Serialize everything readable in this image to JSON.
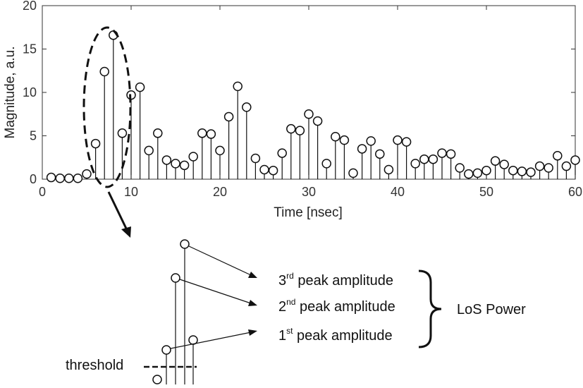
{
  "chart_data": {
    "type": "stem",
    "xlabel": "Time [nsec]",
    "ylabel": "Magnitude, a.u.",
    "xlim": [
      0,
      60
    ],
    "ylim": [
      0,
      20
    ],
    "xticks": [
      0,
      10,
      20,
      30,
      40,
      50,
      60
    ],
    "yticks": [
      0,
      5,
      10,
      15,
      20
    ],
    "grid": false,
    "x": [
      1,
      2,
      3,
      4,
      5,
      6,
      7,
      8,
      9,
      10,
      11,
      12,
      13,
      14,
      15,
      16,
      17,
      18,
      19,
      20,
      21,
      22,
      23,
      24,
      25,
      26,
      27,
      28,
      29,
      30,
      31,
      32,
      33,
      34,
      35,
      36,
      37,
      38,
      39,
      40,
      41,
      42,
      43,
      44,
      45,
      46,
      47,
      48,
      49,
      50,
      51,
      52,
      53,
      54,
      55,
      56,
      57,
      58,
      59,
      60
    ],
    "y": [
      0.2,
      0.1,
      0.1,
      0.1,
      0.6,
      4.1,
      12.4,
      16.6,
      5.3,
      9.7,
      10.6,
      3.3,
      5.3,
      2.2,
      1.8,
      1.6,
      2.6,
      5.3,
      5.2,
      3.3,
      7.2,
      10.7,
      8.3,
      2.4,
      1.1,
      1.0,
      3.0,
      5.8,
      5.6,
      7.5,
      6.7,
      1.8,
      4.9,
      4.5,
      0.7,
      3.5,
      4.4,
      2.9,
      1.1,
      4.5,
      4.3,
      1.8,
      2.3,
      2.3,
      3.0,
      2.9,
      1.3,
      0.6,
      0.7,
      1.0,
      2.1,
      1.7,
      1.0,
      0.9,
      0.8,
      1.5,
      1.3,
      2.7,
      1.5,
      2.2
    ],
    "annotations": {
      "threshold_label": "threshold",
      "peak3_base": "3",
      "peak3_sup": "rd",
      "peak3_rest": " peak amplitude",
      "peak2_base": "2",
      "peak2_sup": "nd",
      "peak2_rest": " peak amplitude",
      "peak1_base": "1",
      "peak1_sup": "st",
      "peak1_rest": " peak amplitude",
      "los_label": "LoS Power"
    }
  }
}
